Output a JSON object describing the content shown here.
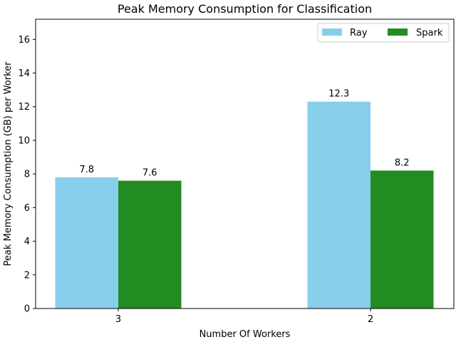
{
  "chart_data": {
    "type": "bar",
    "title": "Peak Memory Consumption for Classification",
    "xlabel": "Number Of Workers",
    "ylabel": "Peak Memory Consumption (GB) per Worker",
    "categories": [
      "3",
      "2"
    ],
    "series": [
      {
        "name": "Ray",
        "values": [
          7.8,
          12.3
        ],
        "labels": [
          "7.8",
          "12.3"
        ],
        "color": "#87ceeb"
      },
      {
        "name": "Spark",
        "values": [
          7.6,
          8.2
        ],
        "labels": [
          "7.6",
          "8.2"
        ],
        "color": "#228b22"
      }
    ],
    "ylim": [
      0,
      17.2
    ],
    "yticks": [
      0,
      2,
      4,
      6,
      8,
      10,
      12,
      14,
      16
    ],
    "legend_position": "top-right",
    "grid": false
  }
}
